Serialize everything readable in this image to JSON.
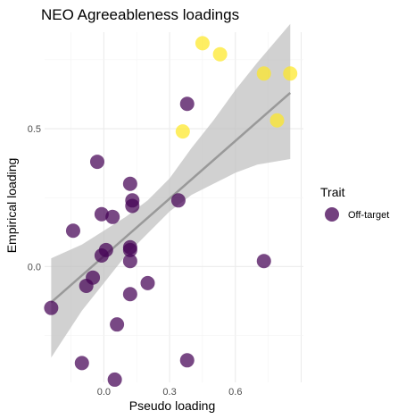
{
  "chart_data": {
    "type": "scatter",
    "title": "NEO Agreeableness loadings",
    "xlabel": "Pseudo loading",
    "ylabel": "Empirical loading",
    "xlim": [
      -0.27,
      0.91
    ],
    "ylim": [
      -0.42,
      0.85
    ],
    "x_ticks": [
      0.0,
      0.3,
      0.6
    ],
    "x_tick_labels": [
      "0.0",
      "0.3",
      "0.6"
    ],
    "y_ticks": [
      0.0,
      0.5
    ],
    "y_tick_labels": [
      "0.0",
      "0.5"
    ],
    "grid": true,
    "legend": {
      "title": "Trait",
      "position": "right",
      "entries": [
        {
          "label": "Off-target",
          "color": "#440154"
        }
      ]
    },
    "colors": {
      "off_target": "#440154",
      "on_target": "#fde725",
      "trend": "#999999",
      "ribbon": "#bfbfbf"
    },
    "series": [
      {
        "name": "Off-target",
        "color": "#440154",
        "points": [
          {
            "x": -0.24,
            "y": -0.15
          },
          {
            "x": -0.14,
            "y": 0.13
          },
          {
            "x": -0.1,
            "y": -0.35
          },
          {
            "x": -0.08,
            "y": -0.07
          },
          {
            "x": -0.05,
            "y": -0.04
          },
          {
            "x": -0.03,
            "y": 0.38
          },
          {
            "x": -0.01,
            "y": 0.04
          },
          {
            "x": -0.01,
            "y": 0.19
          },
          {
            "x": 0.01,
            "y": 0.06
          },
          {
            "x": 0.04,
            "y": 0.18
          },
          {
            "x": 0.05,
            "y": -0.41
          },
          {
            "x": 0.06,
            "y": -0.21
          },
          {
            "x": 0.12,
            "y": 0.3
          },
          {
            "x": 0.13,
            "y": 0.24
          },
          {
            "x": 0.13,
            "y": 0.22
          },
          {
            "x": 0.12,
            "y": 0.07
          },
          {
            "x": 0.12,
            "y": 0.06
          },
          {
            "x": 0.12,
            "y": 0.02
          },
          {
            "x": 0.12,
            "y": -0.1
          },
          {
            "x": 0.2,
            "y": -0.06
          },
          {
            "x": 0.34,
            "y": 0.24
          },
          {
            "x": 0.38,
            "y": 0.59
          },
          {
            "x": 0.38,
            "y": -0.34
          },
          {
            "x": 0.73,
            "y": 0.02
          }
        ]
      },
      {
        "color": "#fde725",
        "points": [
          {
            "x": 0.36,
            "y": 0.49
          },
          {
            "x": 0.45,
            "y": 0.81
          },
          {
            "x": 0.53,
            "y": 0.77
          },
          {
            "x": 0.73,
            "y": 0.7
          },
          {
            "x": 0.79,
            "y": 0.53
          },
          {
            "x": 0.85,
            "y": 0.7
          }
        ]
      }
    ],
    "trend_line": {
      "x": [
        -0.24,
        0.85
      ],
      "y": [
        -0.13,
        0.63
      ]
    },
    "confidence_band": {
      "x": [
        -0.24,
        -0.1,
        0.0,
        0.1,
        0.2,
        0.3,
        0.4,
        0.5,
        0.6,
        0.7,
        0.85
      ],
      "lower": [
        -0.33,
        -0.16,
        -0.06,
        0.04,
        0.12,
        0.2,
        0.26,
        0.3,
        0.34,
        0.37,
        0.39
      ],
      "upper": [
        0.03,
        0.08,
        0.13,
        0.18,
        0.24,
        0.32,
        0.43,
        0.53,
        0.64,
        0.74,
        0.88
      ]
    }
  }
}
